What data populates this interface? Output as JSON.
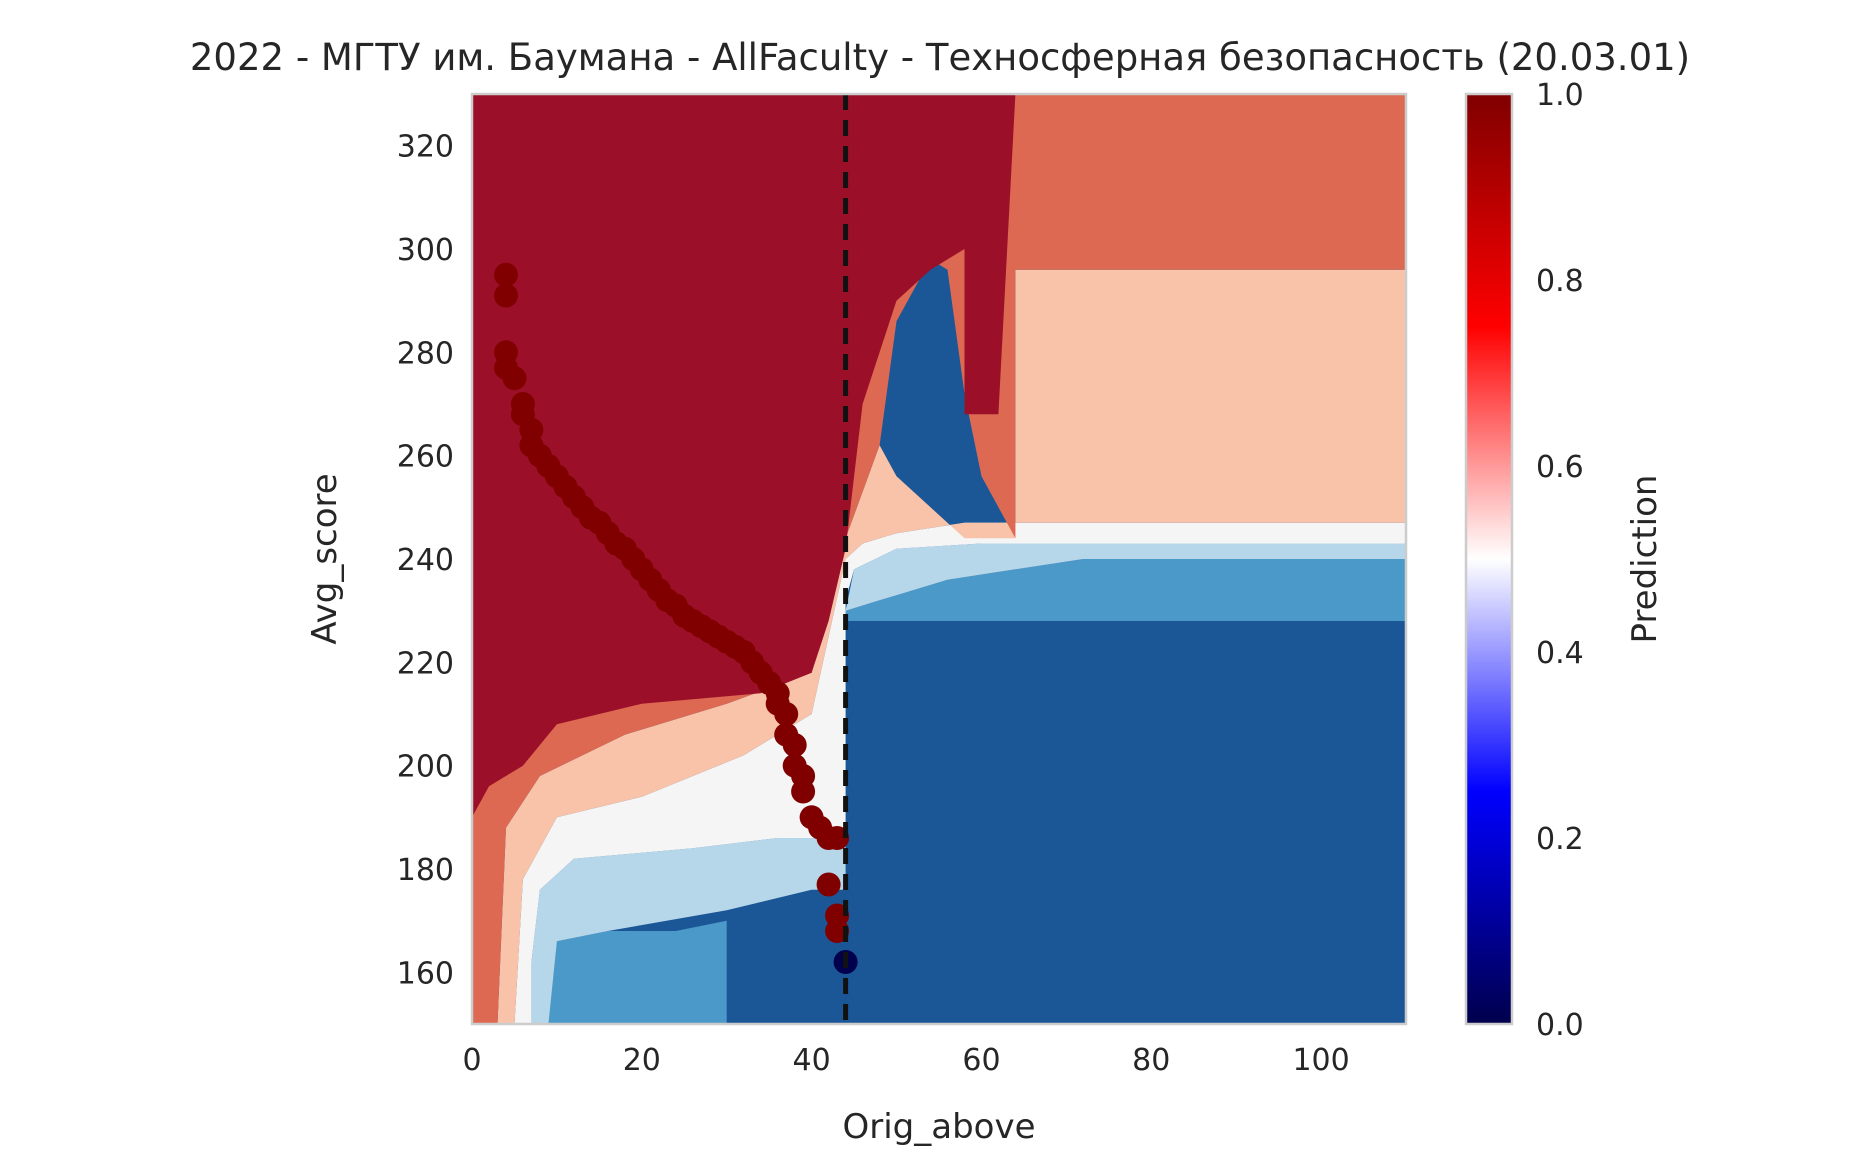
{
  "chart_data": {
    "type": "heatmap",
    "title": "2022 - МГТУ им. Баумана - AllFaculty - Техносферная безопасность (20.03.01)",
    "xlabel": "Orig_above",
    "ylabel": "Avg_score",
    "xlim": [
      0,
      110
    ],
    "ylim": [
      150,
      330
    ],
    "xticks": [
      0,
      20,
      40,
      60,
      80,
      100
    ],
    "yticks": [
      160,
      180,
      200,
      220,
      240,
      260,
      280,
      300,
      320
    ],
    "grid": false,
    "colormap": "seismic",
    "contour_colormap": "RdBu_r",
    "colorbar": {
      "label": "Prediction",
      "range": [
        0,
        1
      ],
      "ticks": [
        "0.0",
        "0.2",
        "0.4",
        "0.6",
        "0.8",
        "1.0"
      ]
    },
    "threshold_line": {
      "x": 44,
      "style": "dashed",
      "color": "#111111"
    },
    "contour_levels": [
      {
        "level": 0.05,
        "color": "#1b5797"
      },
      {
        "level": 0.15,
        "color": "#4b99c8"
      },
      {
        "level": 0.3,
        "color": "#b6d6e9"
      },
      {
        "level": 0.5,
        "color": "#f5f5f5"
      },
      {
        "level": 0.65,
        "color": "#f9c3a9"
      },
      {
        "level": 0.8,
        "color": "#dd6953"
      },
      {
        "level": 0.95,
        "color": "#9b1028"
      }
    ],
    "regions": [
      {
        "name": "region-low",
        "level": 0.05,
        "polygon": [
          [
            0,
            150
          ],
          [
            110,
            150
          ],
          [
            110,
            228
          ],
          [
            44,
            228
          ],
          [
            44,
            150
          ]
        ]
      },
      {
        "name": "region-dark-blue-left",
        "level": 0.05,
        "polygon": [
          [
            30,
            150
          ],
          [
            44,
            150
          ],
          [
            44,
            176
          ],
          [
            40,
            176
          ],
          [
            36,
            174
          ],
          [
            32,
            172
          ],
          [
            30,
            160
          ]
        ]
      },
      {
        "name": "region-mid-blue",
        "level": 0.15,
        "polygon": [
          [
            9,
            150
          ],
          [
            30,
            150
          ],
          [
            30,
            170
          ],
          [
            24,
            168
          ],
          [
            16,
            168
          ],
          [
            10,
            166
          ],
          [
            9,
            158
          ]
        ]
      },
      {
        "name": "region-mid-blue-right",
        "level": 0.15,
        "polygon": [
          [
            44,
            228
          ],
          [
            110,
            228
          ],
          [
            110,
            240
          ],
          [
            72,
            240
          ],
          [
            64,
            238
          ],
          [
            56,
            236
          ],
          [
            48,
            232
          ],
          [
            44,
            230
          ]
        ]
      },
      {
        "name": "region-light-blue",
        "level": 0.3,
        "polygon": [
          [
            7,
            150
          ],
          [
            9,
            150
          ],
          [
            10,
            166
          ],
          [
            16,
            168
          ],
          [
            30,
            172
          ],
          [
            40,
            176
          ],
          [
            44,
            176
          ],
          [
            44,
            186
          ],
          [
            36,
            186
          ],
          [
            26,
            184
          ],
          [
            12,
            182
          ],
          [
            8,
            176
          ],
          [
            7,
            162
          ]
        ]
      },
      {
        "name": "region-light-blue-right",
        "level": 0.3,
        "polygon": [
          [
            44,
            230
          ],
          [
            48,
            232
          ],
          [
            56,
            236
          ],
          [
            64,
            238
          ],
          [
            72,
            240
          ],
          [
            110,
            240
          ],
          [
            110,
            243
          ],
          [
            60,
            243
          ],
          [
            50,
            242
          ],
          [
            45,
            238
          ]
        ]
      },
      {
        "name": "region-white",
        "level": 0.5,
        "polygon": [
          [
            5,
            150
          ],
          [
            7,
            150
          ],
          [
            7,
            162
          ],
          [
            8,
            176
          ],
          [
            12,
            182
          ],
          [
            26,
            184
          ],
          [
            36,
            186
          ],
          [
            44,
            186
          ],
          [
            44,
            232
          ],
          [
            45,
            238
          ],
          [
            50,
            242
          ],
          [
            60,
            243
          ],
          [
            110,
            243
          ],
          [
            110,
            247
          ],
          [
            58,
            247
          ],
          [
            50,
            245
          ],
          [
            46,
            243
          ],
          [
            44,
            240
          ],
          [
            40,
            210
          ],
          [
            32,
            202
          ],
          [
            20,
            194
          ],
          [
            10,
            190
          ],
          [
            6,
            178
          ]
        ]
      },
      {
        "name": "region-light-red",
        "level": 0.65,
        "polygon": [
          [
            3,
            150
          ],
          [
            5,
            150
          ],
          [
            6,
            178
          ],
          [
            10,
            190
          ],
          [
            20,
            194
          ],
          [
            32,
            202
          ],
          [
            40,
            210
          ],
          [
            44,
            240
          ],
          [
            46,
            243
          ],
          [
            50,
            245
          ],
          [
            58,
            247
          ],
          [
            110,
            247
          ],
          [
            110,
            296
          ],
          [
            64,
            296
          ],
          [
            64,
            244
          ],
          [
            58,
            244
          ],
          [
            54,
            250
          ],
          [
            50,
            256
          ],
          [
            48,
            262
          ],
          [
            44,
            244
          ],
          [
            40,
            218
          ],
          [
            30,
            212
          ],
          [
            18,
            206
          ],
          [
            8,
            198
          ],
          [
            4,
            188
          ]
        ]
      },
      {
        "name": "region-red",
        "level": 0.8,
        "polygon": [
          [
            0,
            150
          ],
          [
            3,
            150
          ],
          [
            4,
            188
          ],
          [
            8,
            198
          ],
          [
            18,
            206
          ],
          [
            30,
            212
          ],
          [
            40,
            218
          ],
          [
            44,
            244
          ],
          [
            48,
            262
          ],
          [
            50,
            286
          ],
          [
            54,
            298
          ],
          [
            56,
            296
          ],
          [
            58,
            272
          ],
          [
            60,
            256
          ],
          [
            64,
            244
          ],
          [
            64,
            330
          ],
          [
            110,
            330
          ],
          [
            110,
            296
          ],
          [
            64,
            296
          ],
          [
            64,
            330
          ],
          [
            0,
            330
          ]
        ]
      },
      {
        "name": "region-high",
        "level": 0.95,
        "polygon": [
          [
            0,
            190
          ],
          [
            2,
            196
          ],
          [
            6,
            200
          ],
          [
            10,
            208
          ],
          [
            20,
            212
          ],
          [
            34,
            214
          ],
          [
            40,
            218
          ],
          [
            42,
            228
          ],
          [
            44,
            242
          ],
          [
            46,
            270
          ],
          [
            50,
            290
          ],
          [
            54,
            296
          ],
          [
            58,
            300
          ],
          [
            58,
            268
          ],
          [
            62,
            268
          ],
          [
            64,
            330
          ],
          [
            0,
            330
          ]
        ]
      }
    ],
    "points": {
      "name": "",
      "x": [
        4,
        4,
        4,
        4,
        5,
        6,
        6,
        7,
        7,
        8,
        9,
        10,
        11,
        12,
        13,
        14,
        15,
        16,
        17,
        18,
        19,
        20,
        21,
        22,
        23,
        24,
        25,
        26,
        27,
        28,
        29,
        30,
        31,
        32,
        33,
        34,
        35,
        36,
        36,
        37,
        37,
        38,
        38,
        39,
        39,
        40,
        41,
        42,
        43,
        42,
        43,
        43,
        44
      ],
      "y": [
        295,
        291,
        280,
        277,
        275,
        270,
        268,
        265,
        262,
        260,
        258,
        256,
        254,
        252,
        250,
        248,
        247,
        245,
        243,
        242,
        240,
        238,
        236,
        234,
        232,
        231,
        229,
        228,
        227,
        226,
        225,
        224,
        223,
        222,
        220,
        218,
        216,
        214,
        212,
        210,
        206,
        204,
        200,
        198,
        195,
        190,
        188,
        186,
        186,
        177,
        171,
        168,
        162
      ],
      "values": [
        1,
        1,
        1,
        1,
        1,
        1,
        1,
        1,
        1,
        1,
        1,
        1,
        1,
        1,
        1,
        1,
        1,
        1,
        1,
        1,
        1,
        1,
        1,
        1,
        1,
        1,
        1,
        1,
        1,
        1,
        1,
        1,
        1,
        1,
        1,
        1,
        1,
        1,
        1,
        1,
        1,
        1,
        1,
        1,
        1,
        1,
        1,
        1,
        1,
        1,
        1,
        1,
        0
      ]
    }
  }
}
